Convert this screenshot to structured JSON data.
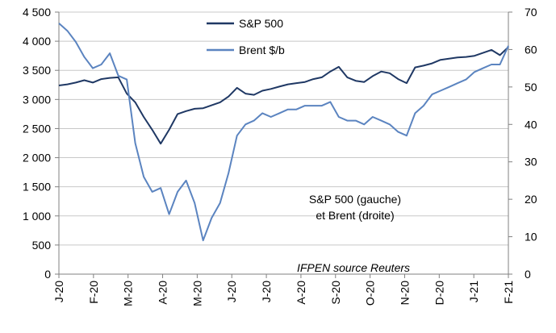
{
  "chart_data": {
    "type": "line",
    "x_ticks": [
      "J-20",
      "F-20",
      "M-20",
      "A-20",
      "M-20",
      "J-20",
      "J-20",
      "A-20",
      "S-20",
      "O-20",
      "N-20",
      "D-20",
      "J-21",
      "F-21"
    ],
    "y_left_ticks": [
      "0",
      "500",
      "1 000",
      "1 500",
      "2 000",
      "2 500",
      "3 000",
      "3 500",
      "4 000",
      "4 500"
    ],
    "y_right_ticks": [
      "0",
      "10",
      "20",
      "30",
      "40",
      "50",
      "60",
      "70"
    ],
    "y_left_range": [
      0,
      4500
    ],
    "y_right_range": [
      0,
      70
    ],
    "grid": "horizontal",
    "legend_position": "top-center",
    "annotation": [
      "S&P 500 (gauche)",
      "et Brent (droite)"
    ],
    "source": "IFPEN source Reuters",
    "colors": {
      "sp500": "#1f3864",
      "brent": "#5b84c0",
      "grid": "#c8c8c8",
      "axis": "#808080"
    },
    "series": [
      {
        "name": "S&P 500",
        "axis": "left",
        "points": [
          [
            "J-20",
            3240
          ],
          [
            "J-20+",
            3260
          ],
          [
            "J-20++",
            3290
          ],
          [
            "J-20+++",
            3330
          ],
          [
            "F-20",
            3290
          ],
          [
            "F-20+",
            3350
          ],
          [
            "F-20++",
            3370
          ],
          [
            "F-20+++",
            3380
          ],
          [
            "M-20-",
            3100
          ],
          [
            "M-20",
            2950
          ],
          [
            "M-20+",
            2700
          ],
          [
            "M-20++",
            2480
          ],
          [
            "M-20+++",
            2240
          ],
          [
            "A-20",
            2480
          ],
          [
            "A-20+",
            2750
          ],
          [
            "A-20++",
            2800
          ],
          [
            "A-20+++",
            2840
          ],
          [
            "M-20",
            2850
          ],
          [
            "M-20+",
            2900
          ],
          [
            "M-20++",
            2950
          ],
          [
            "M-20+++",
            3050
          ],
          [
            "J-20b",
            3200
          ],
          [
            "J-20b+",
            3100
          ],
          [
            "J-20b++",
            3080
          ],
          [
            "J-20b+++",
            3150
          ],
          [
            "J-20c",
            3180
          ],
          [
            "J-20c+",
            3220
          ],
          [
            "J-20c++",
            3260
          ],
          [
            "J-20c+++",
            3280
          ],
          [
            "A-20",
            3300
          ],
          [
            "A-20+",
            3350
          ],
          [
            "A-20++",
            3380
          ],
          [
            "A-20+++",
            3480
          ],
          [
            "S-20",
            3560
          ],
          [
            "S-20+",
            3380
          ],
          [
            "S-20++",
            3320
          ],
          [
            "S-20+++",
            3300
          ],
          [
            "O-20",
            3400
          ],
          [
            "O-20+",
            3480
          ],
          [
            "O-20++",
            3450
          ],
          [
            "O-20+++",
            3350
          ],
          [
            "N-20",
            3280
          ],
          [
            "N-20+",
            3550
          ],
          [
            "N-20++",
            3580
          ],
          [
            "N-20+++",
            3620
          ],
          [
            "D-20",
            3680
          ],
          [
            "D-20+",
            3700
          ],
          [
            "D-20++",
            3720
          ],
          [
            "D-20+++",
            3730
          ],
          [
            "J-21",
            3750
          ],
          [
            "J-21+",
            3800
          ],
          [
            "J-21++",
            3850
          ],
          [
            "J-21+++",
            3760
          ],
          [
            "F-21",
            3900
          ]
        ]
      },
      {
        "name": "Brent $/b",
        "axis": "right",
        "points": [
          [
            "J-20",
            67
          ],
          [
            "J-20+",
            65
          ],
          [
            "J-20++",
            62
          ],
          [
            "J-20+++",
            58
          ],
          [
            "F-20",
            55
          ],
          [
            "F-20+",
            56
          ],
          [
            "F-20++",
            59
          ],
          [
            "F-20+++",
            53
          ],
          [
            "M-20-",
            52
          ],
          [
            "M-20",
            35
          ],
          [
            "M-20+",
            26
          ],
          [
            "M-20++",
            22
          ],
          [
            "M-20+++",
            23
          ],
          [
            "A-20",
            16
          ],
          [
            "A-20+",
            22
          ],
          [
            "A-20++",
            25
          ],
          [
            "A-20+++",
            19
          ],
          [
            "M-20",
            9
          ],
          [
            "M-20+",
            15
          ],
          [
            "M-20++",
            19
          ],
          [
            "M-20+++",
            27
          ],
          [
            "J-20b",
            37
          ],
          [
            "J-20b+",
            40
          ],
          [
            "J-20b++",
            41
          ],
          [
            "J-20b+++",
            43
          ],
          [
            "J-20c",
            42
          ],
          [
            "J-20c+",
            43
          ],
          [
            "J-20c++",
            44
          ],
          [
            "J-20c+++",
            44
          ],
          [
            "A-20",
            45
          ],
          [
            "A-20+",
            45
          ],
          [
            "A-20++",
            45
          ],
          [
            "A-20+++",
            46
          ],
          [
            "S-20",
            42
          ],
          [
            "S-20+",
            41
          ],
          [
            "S-20++",
            41
          ],
          [
            "S-20+++",
            40
          ],
          [
            "O-20",
            42
          ],
          [
            "O-20+",
            41
          ],
          [
            "O-20++",
            40
          ],
          [
            "O-20+++",
            38
          ],
          [
            "N-20",
            37
          ],
          [
            "N-20+",
            43
          ],
          [
            "N-20++",
            45
          ],
          [
            "N-20+++",
            48
          ],
          [
            "D-20",
            49
          ],
          [
            "D-20+",
            50
          ],
          [
            "D-20++",
            51
          ],
          [
            "D-20+++",
            52
          ],
          [
            "J-21",
            54
          ],
          [
            "J-21+",
            55
          ],
          [
            "J-21++",
            56
          ],
          [
            "J-21+++",
            56
          ],
          [
            "F-21",
            61
          ]
        ]
      }
    ]
  }
}
